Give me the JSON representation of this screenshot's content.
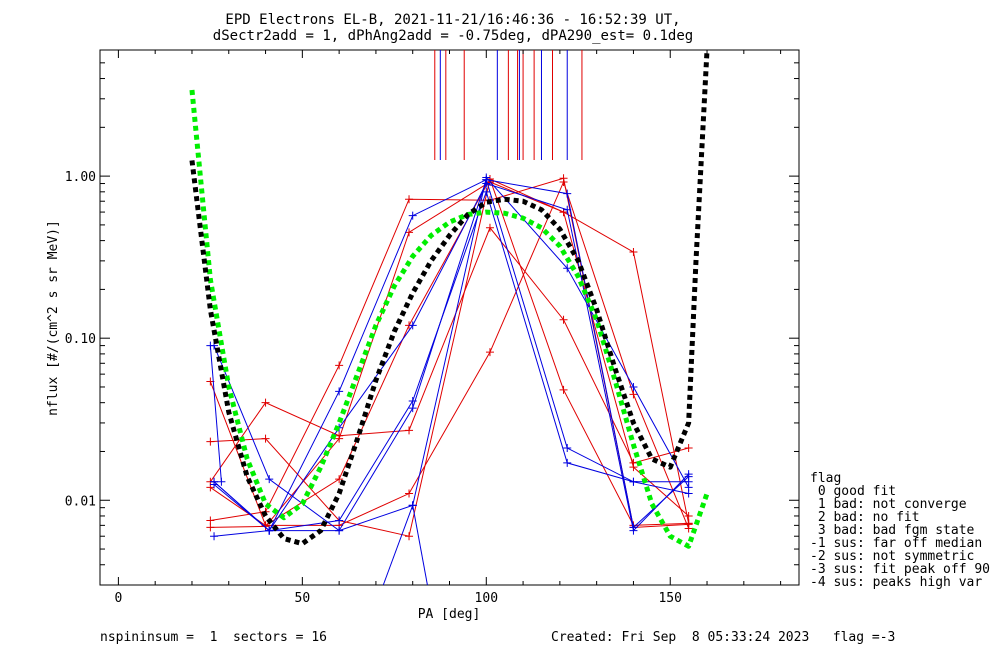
{
  "title_line1": "EPD Electrons EL-B, 2021-11-21/16:46:36 - 16:52:39 UT,",
  "title_line2": "dSectr2add = 1, dPhAng2add = -0.75deg, dPA290_est=   0.1deg",
  "footer": {
    "left": "nspininsum =  1  sectors = 16",
    "right": "Created: Fri Sep  8 05:33:24 2023   flag =-3"
  },
  "legend": {
    "title": "flag",
    "items": [
      " 0 good fit",
      " 1 bad: not converge",
      " 2 bad: no fit",
      " 3 bad: bad fgm state",
      "-1 sus: far off median",
      "-2 sus: not symmetric",
      "-3 sus: fit peak off 90",
      "-4 sus: peaks high var"
    ]
  },
  "colors": {
    "red": "#e00000",
    "blue": "#0000e0",
    "green": "#00ee00",
    "black": "#000000"
  },
  "chart_data": {
    "type": "line",
    "xlabel": "PA [deg]",
    "ylabel": "nflux [#/(cm^2 s sr MeV)]",
    "xlim": [
      -5,
      185
    ],
    "ylim": [
      0.003,
      6.0
    ],
    "yscale": "log",
    "xticks": [
      0,
      50,
      100,
      150
    ],
    "yticks": [
      0.01,
      0.1,
      1.0
    ],
    "ytick_labels": [
      "0.01",
      "0.10",
      "1.00"
    ],
    "vlines_red": [
      86,
      89,
      94,
      106,
      108.5,
      110,
      113,
      118,
      126
    ],
    "vlines_blue": [
      87.5,
      103,
      109,
      115,
      122
    ],
    "series": [
      {
        "color": "red",
        "x": [
          25,
          40,
          60,
          79,
          101,
          121,
          140,
          155
        ],
        "y": [
          0.0068,
          0.0069,
          0.024,
          0.45,
          0.92,
          0.6,
          0.34,
          0.0072
        ]
      },
      {
        "color": "red",
        "x": [
          25,
          40,
          60,
          79,
          101,
          121,
          140,
          155
        ],
        "y": [
          0.0075,
          0.0085,
          0.068,
          0.72,
          0.71,
          0.97,
          0.0068,
          0.0071
        ]
      },
      {
        "color": "red",
        "x": [
          25,
          40,
          60,
          79,
          101,
          121,
          140,
          155
        ],
        "y": [
          0.013,
          0.04,
          0.025,
          0.027,
          0.48,
          0.13,
          0.017,
          0.021
        ]
      },
      {
        "color": "red",
        "x": [
          25,
          40,
          60,
          79,
          101,
          121,
          140,
          155
        ],
        "y": [
          0.023,
          0.024,
          0.0075,
          0.006,
          0.96,
          0.048,
          0.007,
          0.0072
        ]
      },
      {
        "color": "red",
        "x": [
          25,
          40,
          60,
          79,
          101,
          121,
          140,
          155
        ],
        "y": [
          0.054,
          0.007,
          0.007,
          0.011,
          0.082,
          0.92,
          0.045,
          0.0067
        ]
      },
      {
        "color": "red",
        "x": [
          25,
          40,
          60,
          79,
          101,
          121,
          140,
          155
        ],
        "y": [
          0.012,
          0.007,
          0.0135,
          0.12,
          0.96,
          0.6,
          0.016,
          0.008
        ]
      },
      {
        "color": "blue",
        "x": [
          26,
          41,
          60,
          80,
          100,
          122,
          140,
          155
        ],
        "y": [
          0.006,
          0.0065,
          0.047,
          0.57,
          0.95,
          0.021,
          0.013,
          0.013
        ]
      },
      {
        "color": "blue",
        "x": [
          26,
          41,
          60,
          80,
          100,
          122,
          140,
          155
        ],
        "y": [
          0.09,
          0.0135,
          0.0065,
          0.037,
          0.95,
          0.78,
          0.0068,
          0.014
        ]
      },
      {
        "color": "blue",
        "x": [
          26,
          41,
          60,
          80,
          100,
          122,
          140,
          155
        ],
        "y": [
          0.013,
          0.0065,
          0.0065,
          0.0093,
          0.98,
          0.27,
          0.05,
          0.012
        ]
      },
      {
        "color": "blue",
        "x": [
          26,
          41,
          60,
          80,
          100,
          122,
          140,
          155
        ],
        "y": [
          0.0125,
          0.0065,
          0.0075,
          0.041,
          0.8,
          0.017,
          0.013,
          0.011
        ]
      },
      {
        "color": "blue",
        "x": [
          26,
          41,
          60,
          80,
          100,
          122,
          140,
          155
        ],
        "y": [
          0.013,
          0.0065,
          0.028,
          0.12,
          0.9,
          0.62,
          0.0065,
          0.0145
        ]
      },
      {
        "color": "blue",
        "x": [
          72,
          80
        ],
        "y": [
          0.003,
          0.0093
        ]
      },
      {
        "color": "blue",
        "x": [
          80,
          84
        ],
        "y": [
          0.0093,
          0.003
        ]
      },
      {
        "color": "blue",
        "x": [
          25,
          28
        ],
        "y": [
          0.09,
          0.013
        ]
      }
    ],
    "fits": [
      {
        "color": "green",
        "style": "dashed",
        "x": [
          20,
          25,
          30,
          35,
          40,
          45,
          50,
          55,
          60,
          65,
          70,
          75,
          80,
          85,
          90,
          95,
          100,
          105,
          110,
          115,
          120,
          125,
          130,
          135,
          140,
          145,
          150,
          155,
          160
        ],
        "y": [
          3.4,
          0.23,
          0.05,
          0.018,
          0.0095,
          0.0078,
          0.0095,
          0.016,
          0.03,
          0.06,
          0.12,
          0.21,
          0.32,
          0.43,
          0.52,
          0.58,
          0.6,
          0.59,
          0.55,
          0.48,
          0.37,
          0.24,
          0.13,
          0.055,
          0.022,
          0.0095,
          0.006,
          0.0052,
          0.011
        ]
      },
      {
        "color": "black",
        "style": "dashed",
        "x": [
          20,
          25,
          30,
          35,
          40,
          45,
          50,
          55,
          60,
          65,
          70,
          75,
          80,
          85,
          90,
          95,
          100,
          105,
          110,
          115,
          120,
          125,
          130,
          135,
          140,
          145,
          150,
          155,
          157,
          160
        ],
        "y": [
          1.25,
          0.15,
          0.035,
          0.014,
          0.008,
          0.0058,
          0.0054,
          0.0065,
          0.011,
          0.024,
          0.055,
          0.11,
          0.19,
          0.3,
          0.43,
          0.58,
          0.69,
          0.72,
          0.7,
          0.62,
          0.47,
          0.3,
          0.15,
          0.065,
          0.03,
          0.018,
          0.016,
          0.03,
          0.3,
          6.0
        ]
      }
    ]
  }
}
